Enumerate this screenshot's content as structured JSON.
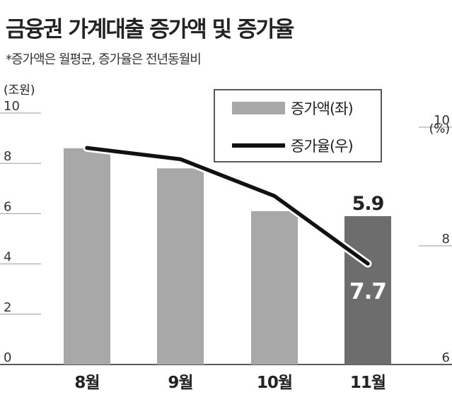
{
  "title": "금융권 가계대출 증가액 및 증가율",
  "subtitle": "*증가액은 월평균, 증가율은 전년동월비",
  "chart_data": {
    "type": "bar",
    "categories": [
      "8월",
      "9월",
      "10월",
      "11월"
    ],
    "series": [
      {
        "name": "증가액(좌)",
        "values": [
          8.6,
          7.8,
          6.1,
          5.9
        ],
        "type": "bar",
        "colors": [
          "#a8a8a8",
          "#a8a8a8",
          "#a8a8a8",
          "#6d6d6d"
        ]
      },
      {
        "name": "증가율(우)",
        "values": [
          9.65,
          9.46,
          8.84,
          7.7
        ],
        "type": "line",
        "color": "#111111"
      }
    ],
    "labels": {
      "bar_label": "5.9",
      "line_label": "7.7"
    },
    "left_axis": {
      "unit": "(조원)",
      "min": 0,
      "max": 10,
      "ticks": [
        "0",
        "2",
        "4",
        "6",
        "8",
        "10"
      ]
    },
    "right_axis": {
      "unit": "(%)",
      "min": 6,
      "max": 10,
      "ticks": [
        "6",
        "8",
        "10"
      ]
    },
    "legend": {
      "position": "top-right"
    }
  }
}
